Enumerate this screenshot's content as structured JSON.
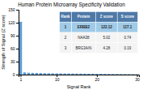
{
  "chart_data": {
    "type": "bar",
    "title": "Human Protein Microarray Specificity Validation",
    "xlabel": "Signal Rank",
    "ylabel": "Strength of Signal (Z score)",
    "x": [
      1,
      2,
      3,
      4,
      5,
      6,
      7,
      8,
      9,
      10,
      11,
      12,
      13,
      14,
      15,
      16,
      17,
      18,
      19,
      20,
      21,
      22,
      23,
      24,
      25,
      26,
      27,
      28,
      29,
      30
    ],
    "values": [
      122.12,
      5.02,
      4.28,
      4.0,
      3.8,
      3.5,
      3.2,
      3.0,
      2.9,
      2.8,
      2.7,
      2.6,
      2.5,
      2.4,
      2.3,
      2.2,
      2.1,
      2.0,
      1.9,
      1.8,
      1.7,
      1.6,
      1.5,
      1.4,
      1.3,
      1.2,
      1.1,
      1.0,
      0.9,
      0.8
    ],
    "color": "#5b9bd5",
    "xlim": [
      0.5,
      30.5
    ],
    "xticks": [
      1,
      10,
      20,
      30
    ],
    "ylim": [
      0,
      150
    ],
    "yticks": [
      0,
      30,
      60,
      90,
      120,
      150
    ],
    "table": {
      "columns": [
        "Rank",
        "Protein",
        "Z score",
        "S score"
      ],
      "rows": [
        [
          "1",
          "ERBB2",
          "122.12",
          "117.1"
        ],
        [
          "2",
          "NAA38",
          "5.02",
          "0.74"
        ],
        [
          "3",
          "BRG3A/N",
          "4.28",
          "0.19"
        ]
      ]
    }
  }
}
